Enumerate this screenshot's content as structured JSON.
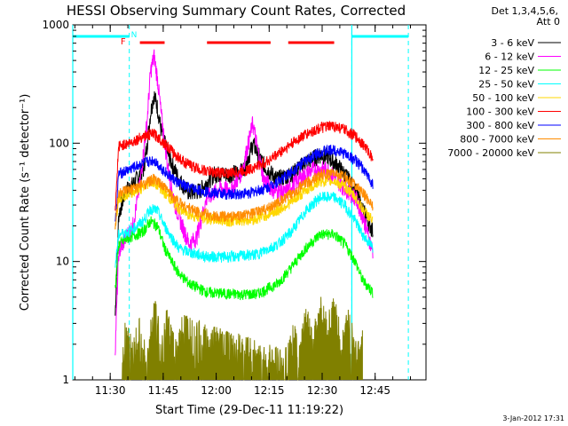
{
  "chart_data": {
    "type": "line",
    "title": "HESSI Observing Summary Count Rates, Corrected",
    "xlabel": "Start Time (29-Dec-11 11:19:22)",
    "ylabel": "Corrected Count Rate (s⁻¹ detector⁻¹)",
    "yscale": "log",
    "ylim": [
      1,
      1000
    ],
    "xlim_minutes": [
      0,
      100
    ],
    "x_tick_labels": [
      "11:30",
      "11:45",
      "12:00",
      "12:15",
      "12:30",
      "12:45"
    ],
    "x_tick_minutes": [
      10.6,
      25.6,
      40.6,
      55.6,
      70.6,
      85.6
    ],
    "y_tick_labels": [
      "1",
      "10",
      "100",
      "1000"
    ],
    "y_tick_values": [
      1,
      10,
      100,
      1000
    ],
    "header_lines": [
      "Det 1,3,4,5,6,",
      "Att 0"
    ],
    "footer": "3-Jan-2012 17:31",
    "flag_labels": {
      "flare": "F",
      "night": "N"
    },
    "series": [
      {
        "name": "3 - 6 keV",
        "color": "#000000",
        "points": [
          [
            12,
            3.5
          ],
          [
            13,
            25
          ],
          [
            15,
            40
          ],
          [
            17,
            45
          ],
          [
            20,
            60
          ],
          [
            21,
            95
          ],
          [
            22,
            180
          ],
          [
            23,
            260
          ],
          [
            24,
            200
          ],
          [
            25,
            130
          ],
          [
            27,
            80
          ],
          [
            30,
            50
          ],
          [
            33,
            38
          ],
          [
            36,
            40
          ],
          [
            40,
            55
          ],
          [
            44,
            55
          ],
          [
            48,
            58
          ],
          [
            50,
            80
          ],
          [
            51,
            100
          ],
          [
            53,
            75
          ],
          [
            55,
            60
          ],
          [
            58,
            50
          ],
          [
            62,
            55
          ],
          [
            66,
            70
          ],
          [
            70,
            80
          ],
          [
            72,
            78
          ],
          [
            75,
            65
          ],
          [
            78,
            50
          ],
          [
            80,
            40
          ],
          [
            82,
            28
          ],
          [
            85,
            18
          ]
        ]
      },
      {
        "name": "6 - 12 keV",
        "color": "#ff00ff",
        "points": [
          [
            12,
            1.8
          ],
          [
            13,
            12
          ],
          [
            15,
            16
          ],
          [
            17,
            20
          ],
          [
            19,
            45
          ],
          [
            21,
            150
          ],
          [
            22,
            400
          ],
          [
            23,
            550
          ],
          [
            24,
            350
          ],
          [
            25,
            180
          ],
          [
            27,
            60
          ],
          [
            29,
            30
          ],
          [
            31,
            20
          ],
          [
            33,
            14
          ],
          [
            35,
            16
          ],
          [
            38,
            35
          ],
          [
            42,
            42
          ],
          [
            45,
            40
          ],
          [
            48,
            60
          ],
          [
            50,
            110
          ],
          [
            51,
            150
          ],
          [
            52,
            100
          ],
          [
            54,
            50
          ],
          [
            57,
            40
          ],
          [
            60,
            38
          ],
          [
            64,
            50
          ],
          [
            68,
            60
          ],
          [
            72,
            60
          ],
          [
            76,
            45
          ],
          [
            80,
            35
          ],
          [
            82,
            25
          ],
          [
            85,
            12
          ]
        ]
      },
      {
        "name": "12 - 25 keV",
        "color": "#00ff00",
        "points": [
          [
            12,
            6
          ],
          [
            13,
            14
          ],
          [
            16,
            16
          ],
          [
            20,
            18
          ],
          [
            22,
            22
          ],
          [
            24,
            20
          ],
          [
            26,
            13
          ],
          [
            28,
            10
          ],
          [
            30,
            8
          ],
          [
            33,
            6.5
          ],
          [
            38,
            5.5
          ],
          [
            45,
            5.3
          ],
          [
            52,
            5.3
          ],
          [
            58,
            6.5
          ],
          [
            62,
            9
          ],
          [
            66,
            13
          ],
          [
            70,
            17
          ],
          [
            74,
            17
          ],
          [
            77,
            14
          ],
          [
            80,
            10
          ],
          [
            82,
            7
          ],
          [
            85,
            5.5
          ]
        ]
      },
      {
        "name": "25 - 50 keV",
        "color": "#00ffff",
        "points": [
          [
            12,
            9
          ],
          [
            13,
            17
          ],
          [
            16,
            18
          ],
          [
            20,
            22
          ],
          [
            22,
            28
          ],
          [
            24,
            27
          ],
          [
            26,
            20
          ],
          [
            28,
            16
          ],
          [
            30,
            13
          ],
          [
            33,
            12
          ],
          [
            38,
            11
          ],
          [
            45,
            11
          ],
          [
            52,
            11.5
          ],
          [
            58,
            14
          ],
          [
            62,
            18
          ],
          [
            66,
            27
          ],
          [
            70,
            35
          ],
          [
            74,
            35
          ],
          [
            77,
            30
          ],
          [
            80,
            22
          ],
          [
            82,
            17
          ],
          [
            85,
            13
          ]
        ]
      },
      {
        "name": "50 - 100 keV",
        "color": "#ffd700",
        "points": [
          [
            12,
            20
          ],
          [
            13,
            35
          ],
          [
            16,
            38
          ],
          [
            20,
            42
          ],
          [
            22,
            48
          ],
          [
            24,
            45
          ],
          [
            26,
            38
          ],
          [
            28,
            33
          ],
          [
            30,
            28
          ],
          [
            33,
            25
          ],
          [
            38,
            23
          ],
          [
            45,
            22
          ],
          [
            52,
            23
          ],
          [
            58,
            27
          ],
          [
            62,
            32
          ],
          [
            66,
            40
          ],
          [
            70,
            48
          ],
          [
            74,
            48
          ],
          [
            77,
            43
          ],
          [
            80,
            35
          ],
          [
            82,
            28
          ],
          [
            85,
            22
          ]
        ]
      },
      {
        "name": "100 - 300 keV",
        "color": "#ff0000",
        "points": [
          [
            12,
            25
          ],
          [
            13,
            95
          ],
          [
            16,
            100
          ],
          [
            20,
            115
          ],
          [
            23,
            120
          ],
          [
            26,
            100
          ],
          [
            29,
            80
          ],
          [
            32,
            68
          ],
          [
            36,
            60
          ],
          [
            40,
            57
          ],
          [
            45,
            56
          ],
          [
            50,
            60
          ],
          [
            55,
            70
          ],
          [
            60,
            90
          ],
          [
            65,
            115
          ],
          [
            70,
            135
          ],
          [
            74,
            140
          ],
          [
            77,
            130
          ],
          [
            80,
            115
          ],
          [
            82,
            100
          ],
          [
            85,
            75
          ]
        ]
      },
      {
        "name": "300 - 800 keV",
        "color": "#0000ff",
        "points": [
          [
            12,
            20
          ],
          [
            13,
            55
          ],
          [
            16,
            60
          ],
          [
            20,
            68
          ],
          [
            23,
            72
          ],
          [
            26,
            58
          ],
          [
            29,
            48
          ],
          [
            32,
            43
          ],
          [
            36,
            40
          ],
          [
            40,
            38
          ],
          [
            45,
            37
          ],
          [
            50,
            38
          ],
          [
            55,
            42
          ],
          [
            60,
            52
          ],
          [
            65,
            68
          ],
          [
            70,
            85
          ],
          [
            74,
            88
          ],
          [
            77,
            82
          ],
          [
            80,
            72
          ],
          [
            82,
            62
          ],
          [
            85,
            45
          ]
        ]
      },
      {
        "name": "800 - 7000 keV",
        "color": "#ff8c00",
        "points": [
          [
            12,
            20
          ],
          [
            13,
            38
          ],
          [
            16,
            40
          ],
          [
            20,
            45
          ],
          [
            23,
            50
          ],
          [
            26,
            42
          ],
          [
            29,
            34
          ],
          [
            32,
            29
          ],
          [
            36,
            26
          ],
          [
            40,
            24
          ],
          [
            45,
            24
          ],
          [
            50,
            25
          ],
          [
            55,
            28
          ],
          [
            60,
            34
          ],
          [
            65,
            44
          ],
          [
            70,
            54
          ],
          [
            74,
            56
          ],
          [
            77,
            52
          ],
          [
            80,
            45
          ],
          [
            82,
            38
          ],
          [
            85,
            30
          ]
        ]
      },
      {
        "name": "7000 - 20000 keV",
        "color": "#808000",
        "points": [
          [
            14,
            1
          ],
          [
            15,
            2
          ],
          [
            17,
            1.3
          ],
          [
            19,
            2
          ],
          [
            21,
            1
          ],
          [
            23,
            3
          ],
          [
            25,
            1.5
          ],
          [
            27,
            2.5
          ],
          [
            29,
            1.2
          ],
          [
            31,
            2
          ],
          [
            60,
            1
          ],
          [
            62,
            2
          ],
          [
            64,
            1.2
          ],
          [
            66,
            2.5
          ],
          [
            68,
            1.5
          ],
          [
            70,
            3
          ],
          [
            72,
            2
          ],
          [
            74,
            3
          ],
          [
            76,
            1.5
          ],
          [
            78,
            2.5
          ],
          [
            80,
            1.2
          ],
          [
            82,
            2
          ]
        ]
      }
    ],
    "flag_bars": [
      {
        "kind": "attenuator-cyan",
        "color": "#00ffff",
        "segments": [
          [
            0,
            16
          ],
          [
            79,
            95
          ]
        ]
      },
      {
        "kind": "flare",
        "color": "#ff0000",
        "segments": [
          [
            19,
            26
          ],
          [
            38,
            56
          ],
          [
            61,
            74
          ]
        ]
      }
    ],
    "dashed_markers_minutes": [
      16,
      79,
      95
    ],
    "cyan_vertical_minutes": [
      0,
      79
    ]
  }
}
